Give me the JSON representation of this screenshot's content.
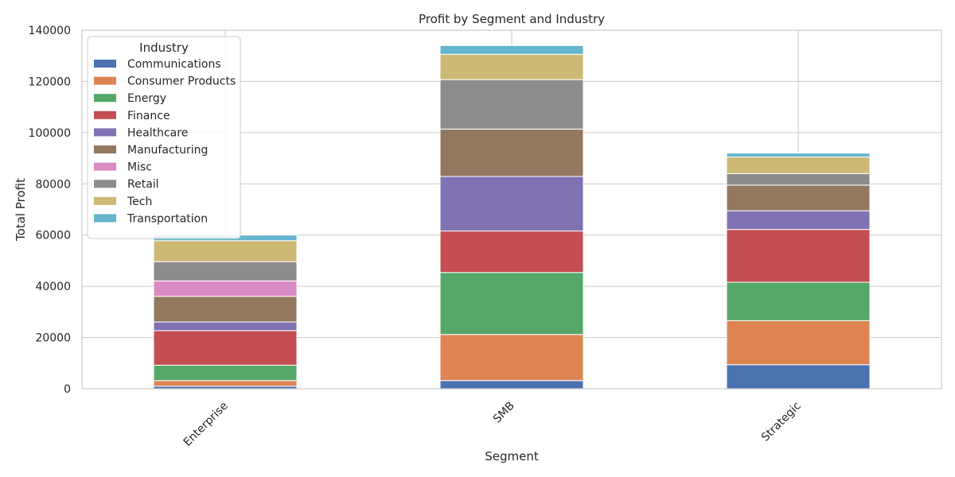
{
  "chart_data": {
    "type": "bar",
    "stacked": true,
    "title": "Profit by Segment and Industry",
    "xlabel": "Segment",
    "ylabel": "Total Profit",
    "categories": [
      "Enterprise",
      "SMB",
      "Strategic"
    ],
    "ylim": [
      0,
      140000
    ],
    "yticks": [
      0,
      20000,
      40000,
      60000,
      80000,
      100000,
      120000,
      140000
    ],
    "yticklabels": [
      "0",
      "20000",
      "40000",
      "60000",
      "80000",
      "100000",
      "120000",
      "140000"
    ],
    "grid": true,
    "legend": {
      "title": "Industry",
      "placement": "top-left"
    },
    "series": [
      {
        "name": "Communications",
        "color": "#4c72b0",
        "values": [
          1000,
          3200,
          9400
        ]
      },
      {
        "name": "Consumer Products",
        "color": "#dd8452",
        "values": [
          2200,
          18000,
          17200
        ]
      },
      {
        "name": "Energy",
        "color": "#55a868",
        "values": [
          6000,
          24200,
          15000
        ]
      },
      {
        "name": "Finance",
        "color": "#c44e52",
        "values": [
          13500,
          16200,
          20600
        ]
      },
      {
        "name": "Healthcare",
        "color": "#8172b3",
        "values": [
          3400,
          21300,
          7300
        ]
      },
      {
        "name": "Manufacturing",
        "color": "#937860",
        "values": [
          10000,
          18500,
          10000
        ]
      },
      {
        "name": "Misc",
        "color": "#da8bc3",
        "values": [
          6000,
          0,
          0
        ]
      },
      {
        "name": "Retail",
        "color": "#8c8c8c",
        "values": [
          7500,
          19300,
          4500
        ]
      },
      {
        "name": "Tech",
        "color": "#ccb974",
        "values": [
          8200,
          9900,
          6500
        ]
      },
      {
        "name": "Transportation",
        "color": "#64b5cd",
        "values": [
          2200,
          3400,
          1500
        ]
      }
    ]
  }
}
